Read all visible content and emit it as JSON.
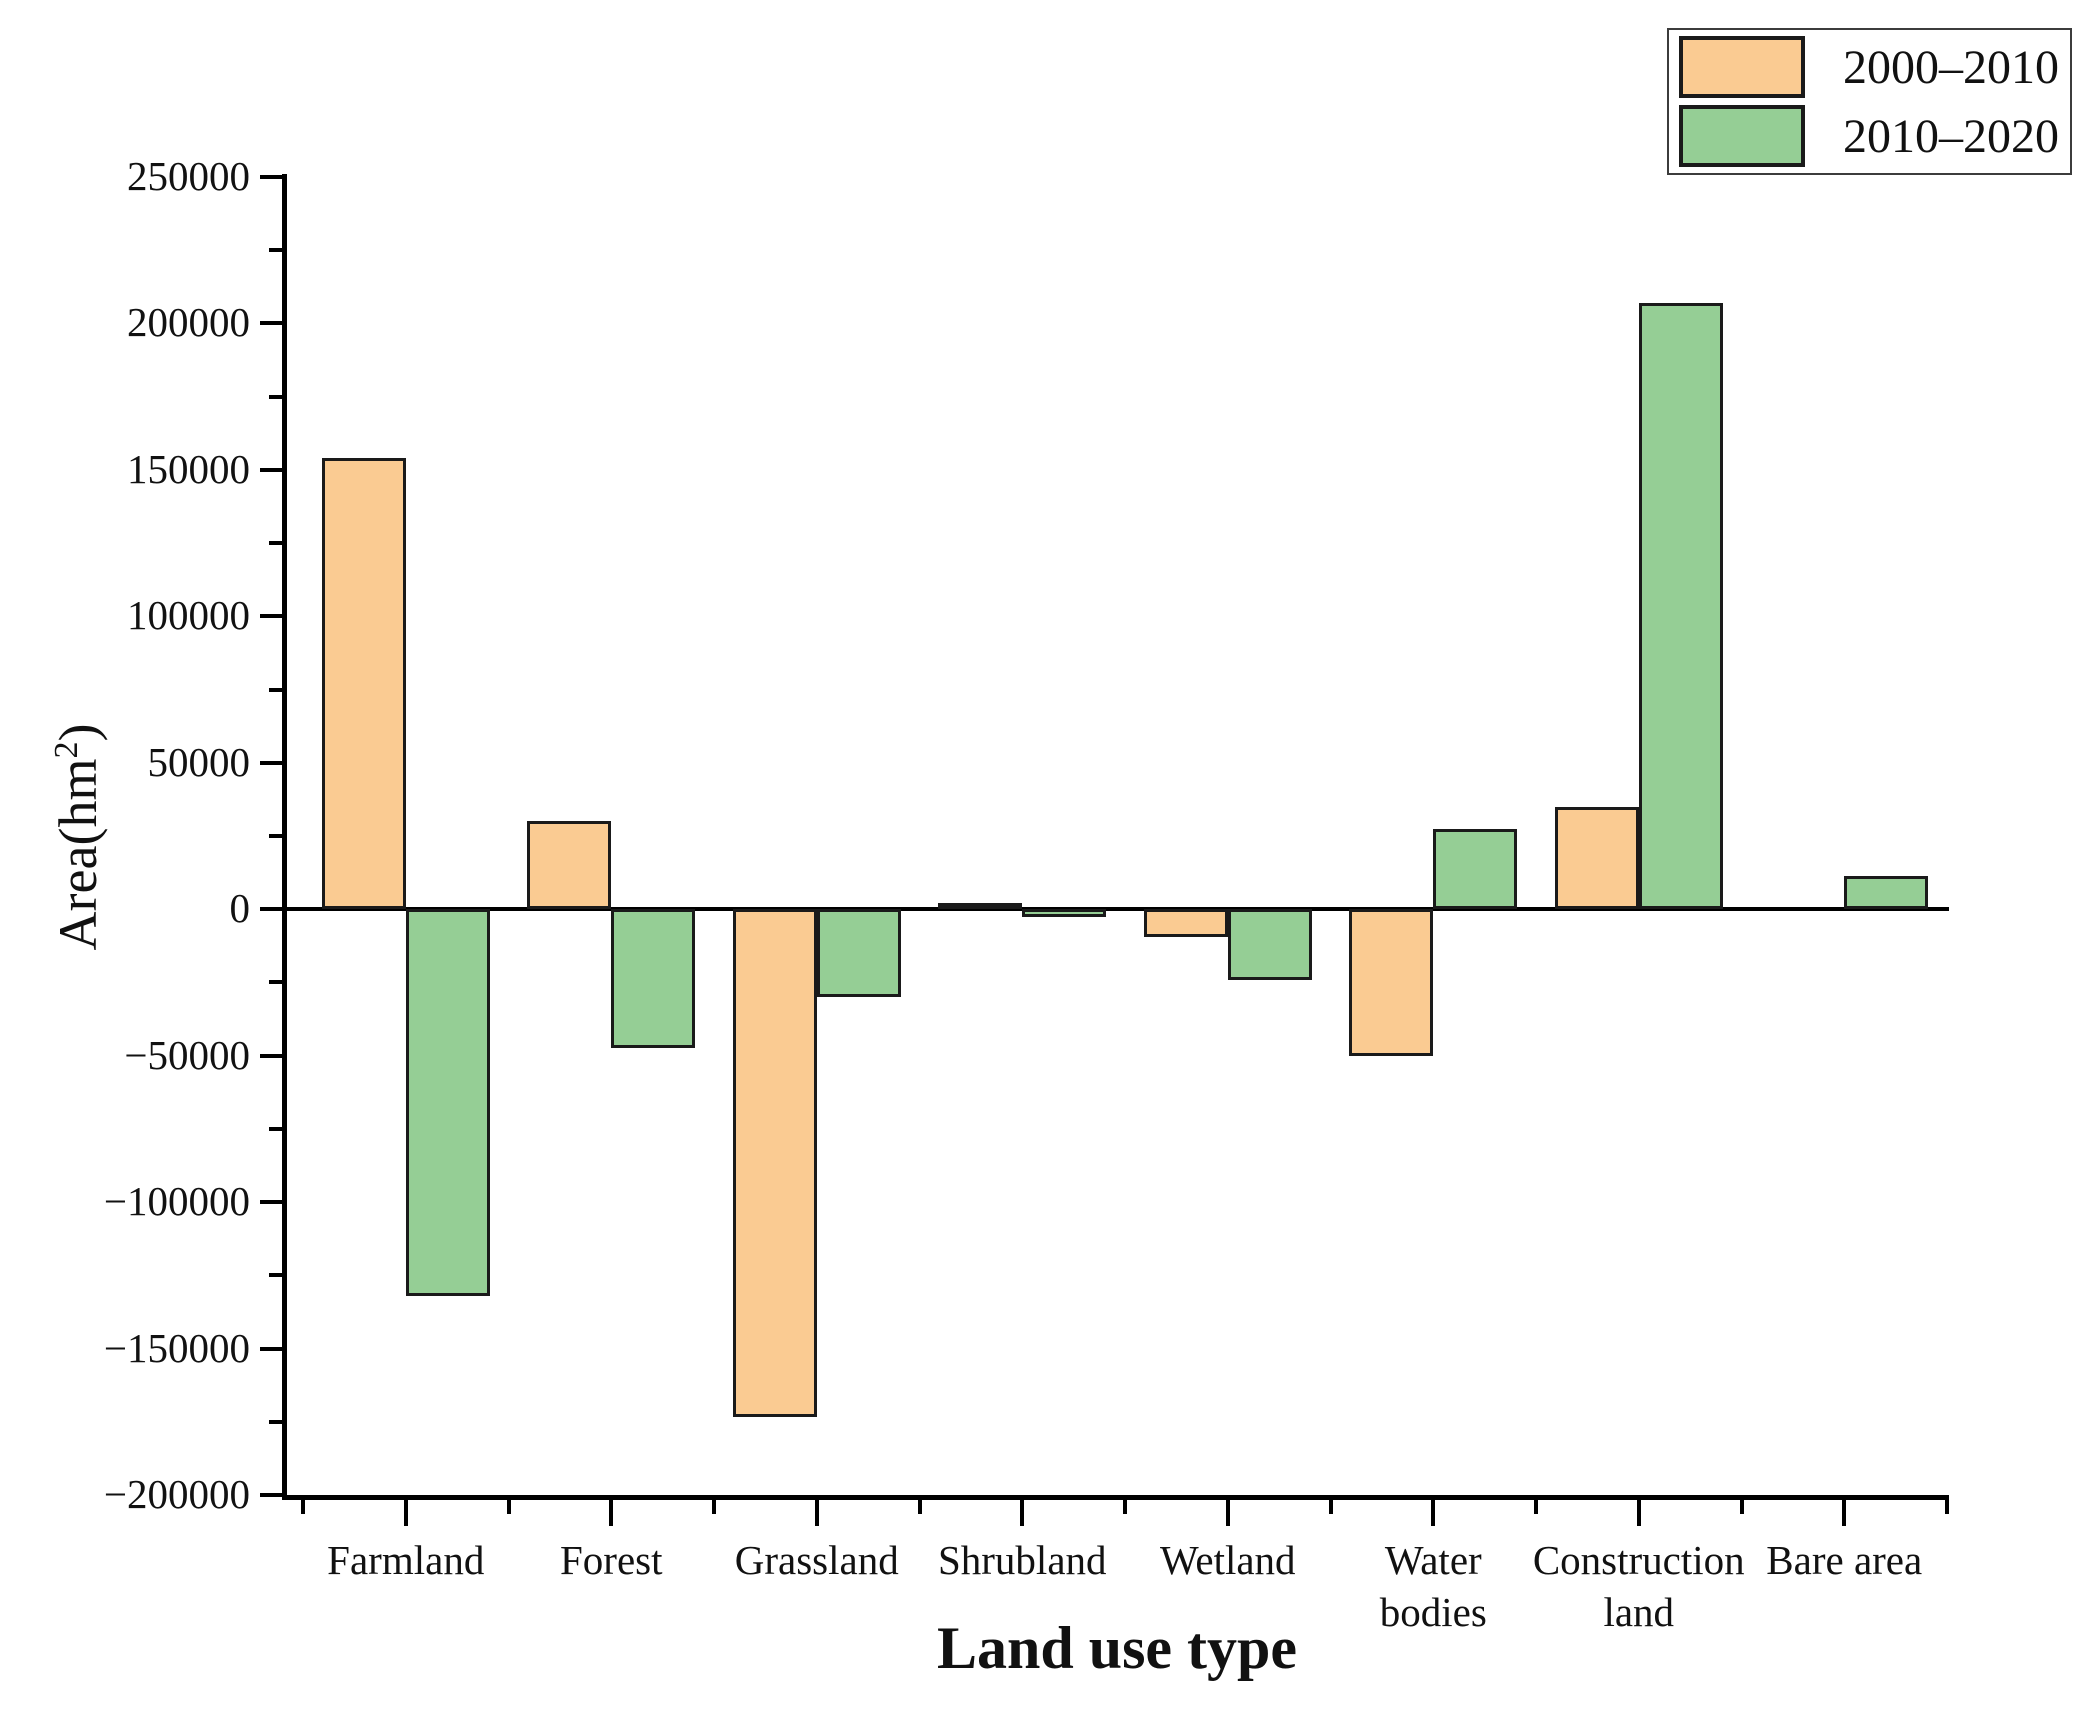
{
  "legend": {
    "items": [
      {
        "label": "2000–2010",
        "color": "#FACB92"
      },
      {
        "label": "2010–2020",
        "color": "#95CE95"
      }
    ]
  },
  "chart_data": {
    "type": "bar",
    "title": "",
    "xlabel": "Land use type",
    "ylabel": "Area(hm²)",
    "categories": [
      "Farmland",
      "Forest",
      "Grassland",
      "Shrubland",
      "Wetland",
      "Water bodies",
      "Construction land",
      "Bare area"
    ],
    "category_label_lines": [
      [
        "Farmland"
      ],
      [
        "Forest"
      ],
      [
        "Grassland"
      ],
      [
        "Shrubland"
      ],
      [
        "Wetland"
      ],
      [
        "Water",
        "bodies"
      ],
      [
        "Construction",
        "land"
      ],
      [
        "Bare area"
      ]
    ],
    "series": [
      {
        "name": "2000–2010",
        "color": "#FACB92",
        "values": [
          154000,
          30000,
          -173500,
          2000,
          -9500,
          -50000,
          35000,
          0
        ]
      },
      {
        "name": "2010–2020",
        "color": "#95CE95",
        "values": [
          -132000,
          -47500,
          -30000,
          -2500,
          -24000,
          27500,
          207000,
          11500
        ]
      }
    ],
    "ylim": [
      -200000,
      250000
    ],
    "yticks": [
      250000,
      200000,
      150000,
      100000,
      50000,
      0,
      -50000,
      -100000,
      -150000,
      -200000
    ],
    "ytick_interval": 50000,
    "yminor_interval": 25000,
    "grid": false,
    "legend_position": "top-right",
    "bar_edge_color": "#1a1a1a",
    "axis_color": "#000000"
  }
}
